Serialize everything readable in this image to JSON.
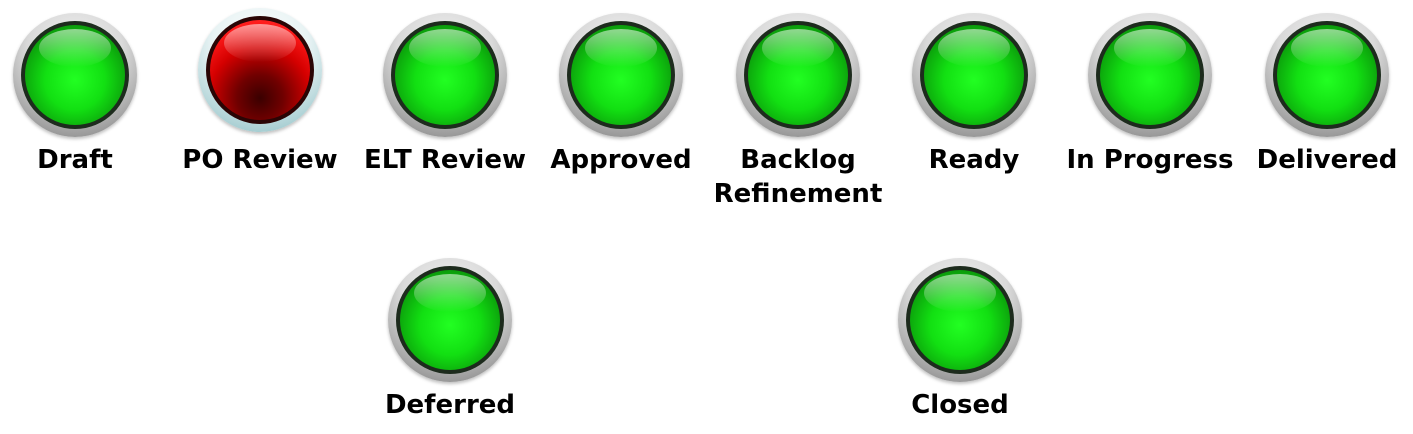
{
  "statuses": [
    {
      "line1": "Draft",
      "line2": "",
      "state": "green"
    },
    {
      "line1": "PO Review",
      "line2": "",
      "state": "red"
    },
    {
      "line1": "ELT Review",
      "line2": "",
      "state": "green"
    },
    {
      "line1": "Approved",
      "line2": "",
      "state": "green"
    },
    {
      "line1": "Backlog",
      "line2": "Refinement",
      "state": "green"
    },
    {
      "line1": "Ready",
      "line2": "",
      "state": "green"
    },
    {
      "line1": "In Progress",
      "line2": "",
      "state": "green"
    },
    {
      "line1": "Delivered",
      "line2": "",
      "state": "green"
    },
    {
      "line1": "Deferred",
      "line2": "",
      "state": "green"
    },
    {
      "line1": "Closed",
      "line2": "",
      "state": "green"
    }
  ],
  "colors": {
    "green": "#12e012",
    "red": "#d40000"
  }
}
